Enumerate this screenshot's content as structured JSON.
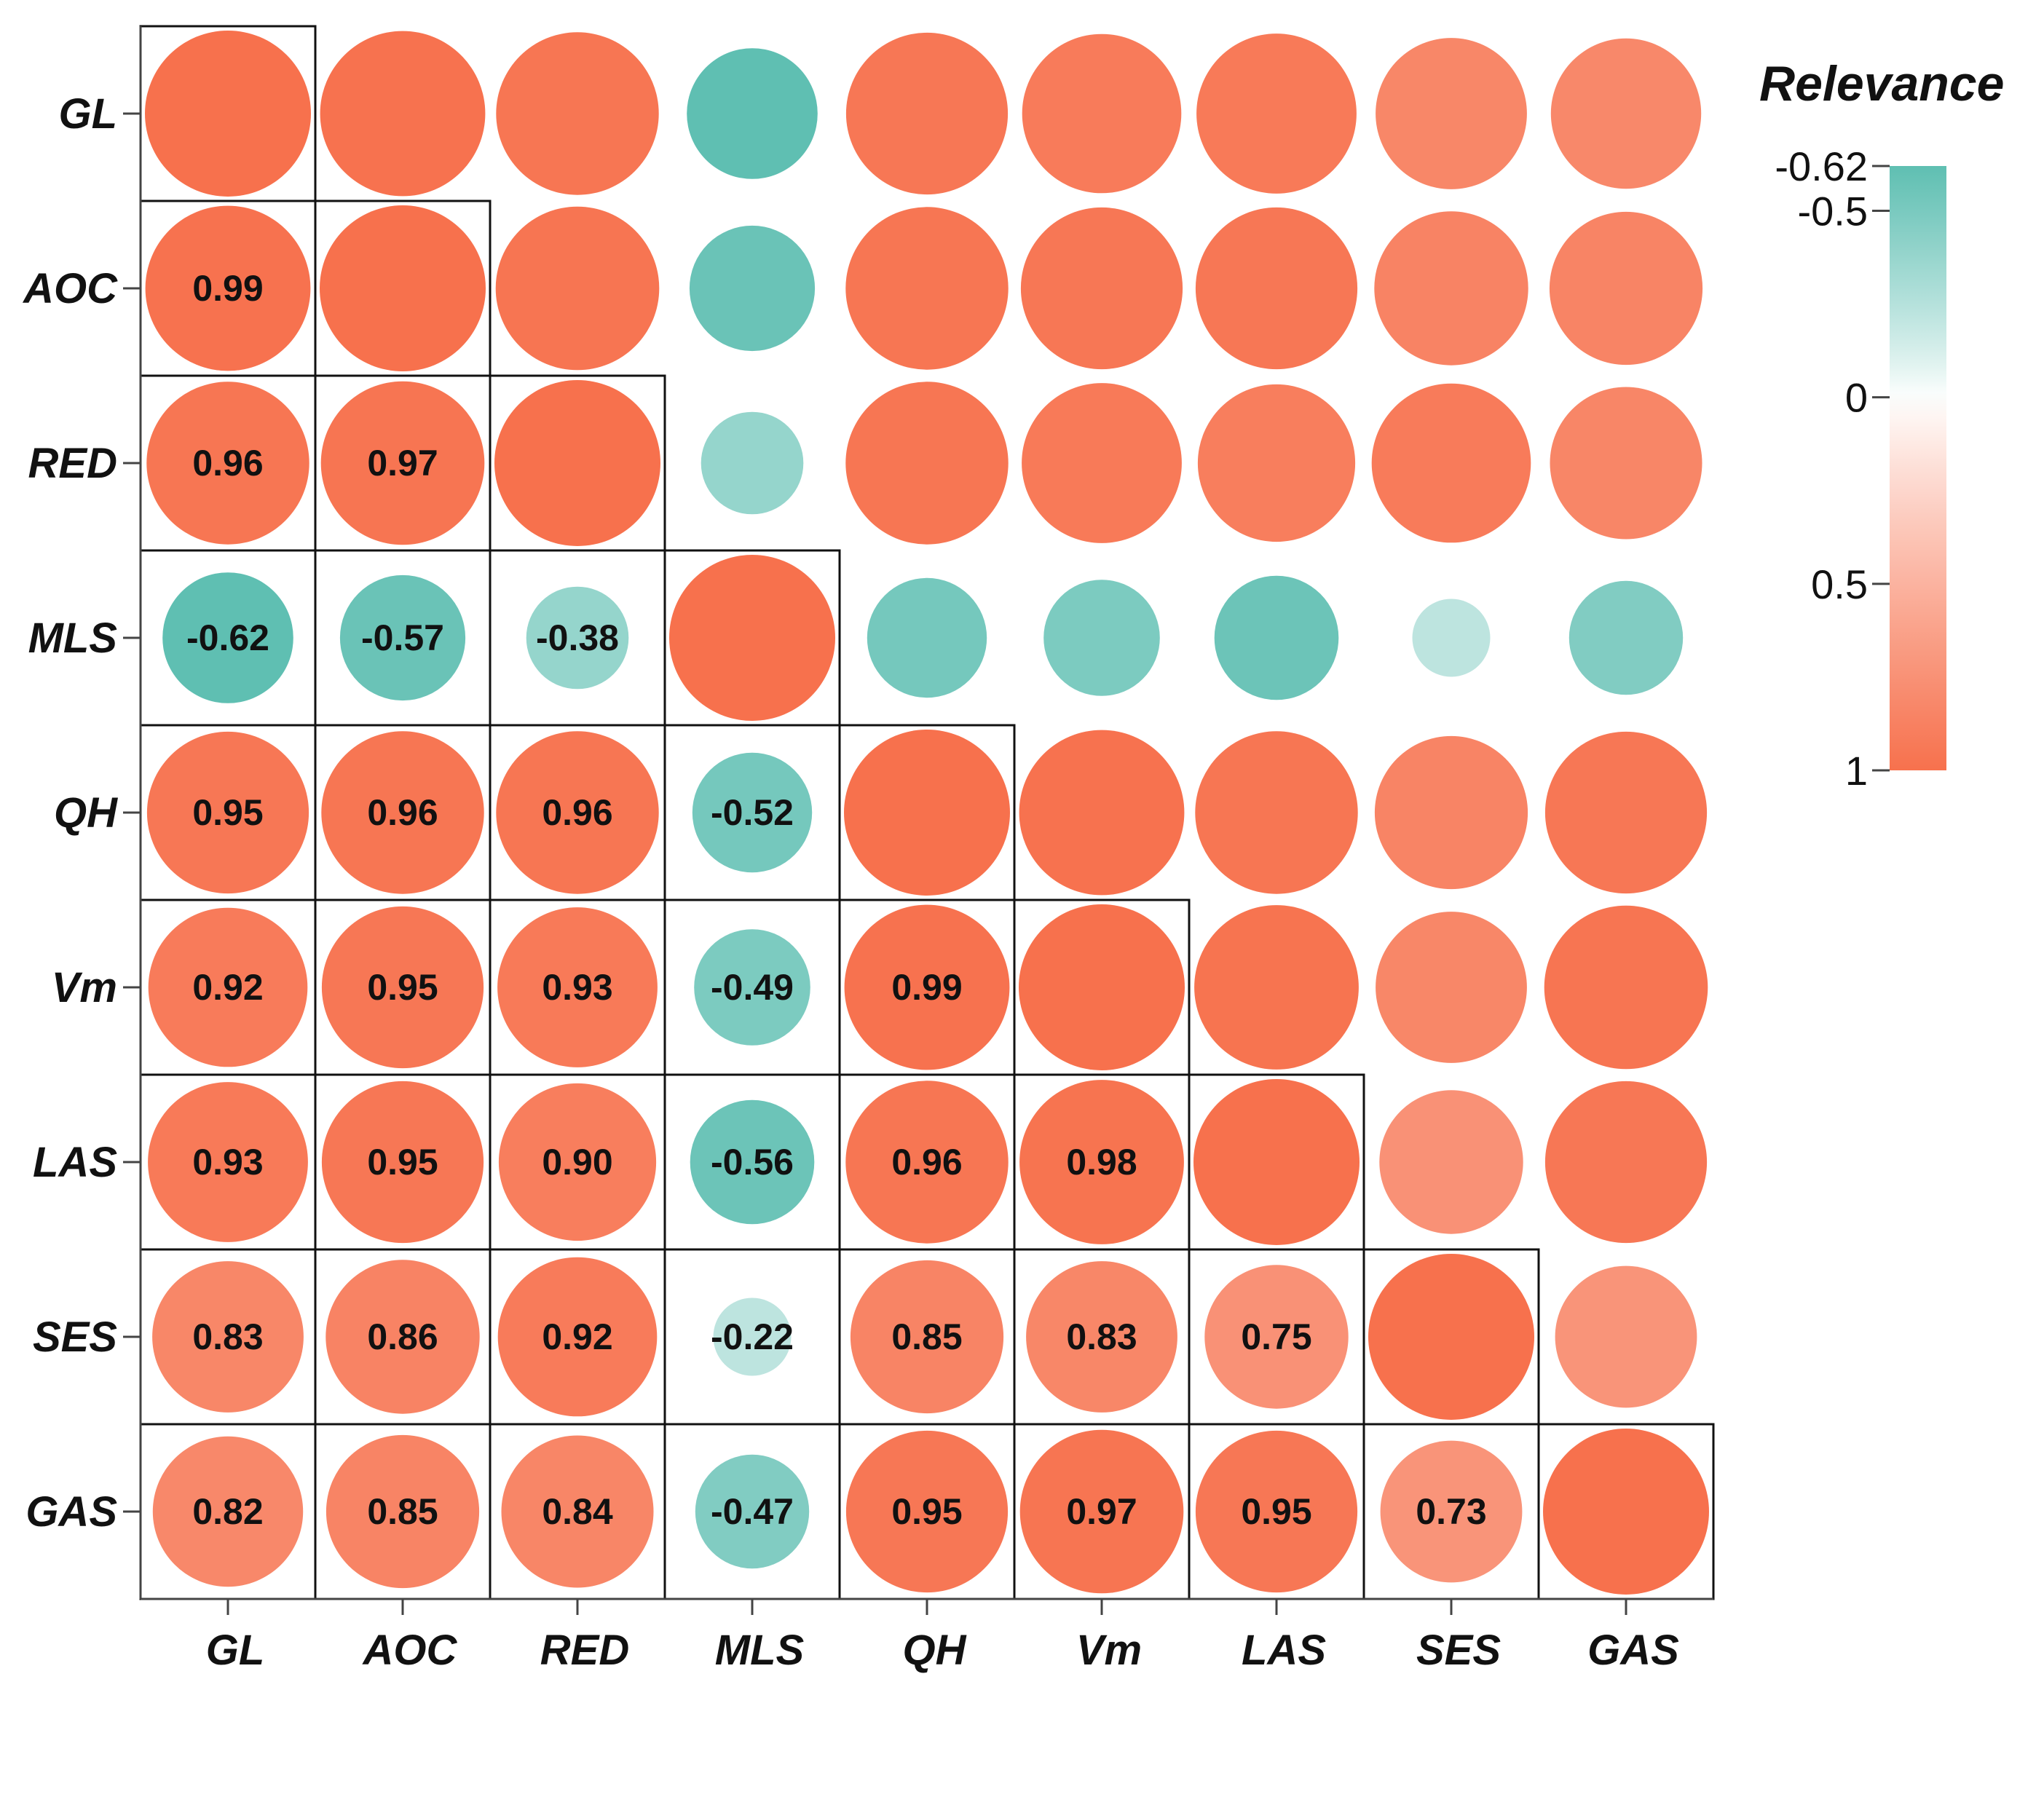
{
  "chart_data": {
    "type": "correlation-matrix",
    "variables": [
      "GL",
      "AOC",
      "RED",
      "MLS",
      "QH",
      "Vm",
      "LAS",
      "SES",
      "GAS"
    ],
    "matrix": [
      [
        1.0,
        0.99,
        0.96,
        -0.62,
        0.95,
        0.92,
        0.93,
        0.83,
        0.82
      ],
      [
        0.99,
        1.0,
        0.97,
        -0.57,
        0.96,
        0.95,
        0.95,
        0.86,
        0.85
      ],
      [
        0.96,
        0.97,
        1.0,
        -0.38,
        0.96,
        0.93,
        0.9,
        0.92,
        0.84
      ],
      [
        -0.62,
        -0.57,
        -0.38,
        1.0,
        -0.52,
        -0.49,
        -0.56,
        -0.22,
        -0.47
      ],
      [
        0.95,
        0.96,
        0.96,
        -0.52,
        1.0,
        0.99,
        0.96,
        0.85,
        0.95
      ],
      [
        0.92,
        0.95,
        0.93,
        -0.49,
        0.99,
        1.0,
        0.98,
        0.83,
        0.97
      ],
      [
        0.93,
        0.95,
        0.9,
        -0.56,
        0.96,
        0.98,
        1.0,
        0.75,
        0.95
      ],
      [
        0.83,
        0.86,
        0.92,
        -0.22,
        0.85,
        0.83,
        0.75,
        1.0,
        0.73
      ],
      [
        0.82,
        0.85,
        0.84,
        -0.47,
        0.95,
        0.97,
        0.95,
        0.73,
        1.0
      ]
    ],
    "lower_labels": [
      [
        "",
        "",
        "",
        "",
        "",
        "",
        "",
        "",
        ""
      ],
      [
        "0.99",
        "",
        "",
        "",
        "",
        "",
        "",
        "",
        ""
      ],
      [
        "0.96",
        "0.97",
        "",
        "",
        "",
        "",
        "",
        "",
        ""
      ],
      [
        "-0.62",
        "-0.57",
        "-0.38",
        "",
        "",
        "",
        "",
        "",
        ""
      ],
      [
        "0.95",
        "0.96",
        "0.96",
        "-0.52",
        "",
        "",
        "",
        "",
        ""
      ],
      [
        "0.92",
        "0.95",
        "0.93",
        "-0.49",
        "0.99",
        "",
        "",
        "",
        ""
      ],
      [
        "0.93",
        "0.95",
        "0.90",
        "-0.56",
        "0.96",
        "0.98",
        "",
        "",
        ""
      ],
      [
        "0.83",
        "0.86",
        "0.92",
        "-0.22",
        "0.85",
        "0.83",
        "0.75",
        "",
        ""
      ],
      [
        "0.82",
        "0.85",
        "0.84",
        "-0.47",
        "0.95",
        "0.97",
        "0.95",
        "0.73",
        ""
      ]
    ],
    "legend": {
      "title": "Relevance",
      "range": [
        -0.62,
        1
      ],
      "ticks": [
        {
          "value": -0.62,
          "label": "-0.62"
        },
        {
          "value": -0.5,
          "label": "-0.5"
        },
        {
          "value": 0,
          "label": "0"
        },
        {
          "value": 0.5,
          "label": "0.5"
        },
        {
          "value": 1,
          "label": "1"
        }
      ],
      "placement": "right"
    },
    "colors": {
      "negative": "#5fbfb2",
      "neutral": "#ffffff",
      "positive": "#f7714d",
      "grid": "#111111",
      "axis": "#444444"
    }
  }
}
